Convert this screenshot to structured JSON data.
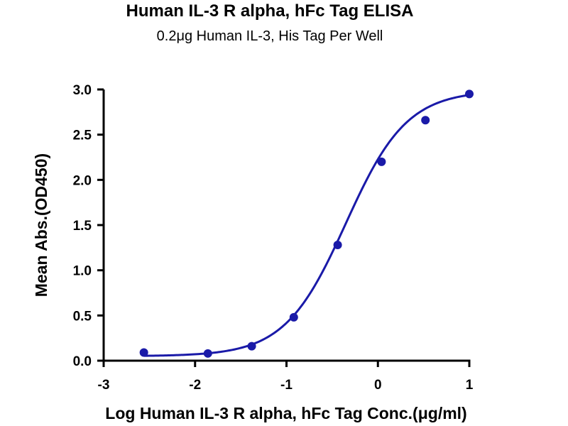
{
  "chart_data": {
    "type": "scatter",
    "title": "Human IL-3 R alpha, hFc Tag ELISA",
    "subtitle": "0.2μg Human IL-3, His Tag Per Well",
    "xlabel": "Log Human IL-3 R alpha, hFc Tag Conc.(μg/ml)",
    "ylabel": "Mean Abs.(OD450)",
    "xlim": [
      -3,
      1
    ],
    "ylim": [
      0,
      3.0
    ],
    "xticks": [
      -3,
      -2,
      -1,
      0,
      1
    ],
    "xtick_labels": [
      "-3",
      "-2",
      "-1",
      "0",
      "1"
    ],
    "yticks": [
      0,
      0.5,
      1.0,
      1.5,
      2.0,
      2.5,
      3.0
    ],
    "ytick_labels": [
      "0.0",
      "0.5",
      "1.0",
      "1.5",
      "2.0",
      "2.5",
      "3.0"
    ],
    "grid": false,
    "series": [
      {
        "x": [
          -2.56,
          -1.86,
          -1.38,
          -0.92,
          -0.44,
          0.04,
          0.52,
          1.0
        ],
        "y": [
          0.09,
          0.08,
          0.16,
          0.48,
          1.28,
          2.2,
          2.66,
          2.95
        ],
        "fit": "four-parameter logistic",
        "color": "#1a1aa8"
      }
    ],
    "fit_curve": {
      "bottom": 0.05,
      "top": 2.99,
      "log_ec50": -0.35,
      "hill_slope": 1.3
    }
  }
}
